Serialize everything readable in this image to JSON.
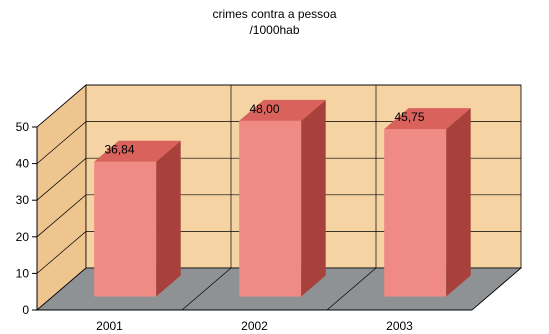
{
  "chart_data": {
    "type": "bar",
    "title": [
      "crimes contra a pessoa",
      "/1000hab"
    ],
    "categories": [
      "2001",
      "2002",
      "2003"
    ],
    "values": [
      36.84,
      48.0,
      45.75
    ],
    "data_labels": [
      "36,84",
      "48,00",
      "45,75"
    ],
    "ylim": [
      0,
      50
    ],
    "yticks": [
      "0",
      "10",
      "20",
      "30",
      "40",
      "50"
    ],
    "grid": true,
    "legend": "none",
    "style": "3d",
    "colors": {
      "bar_front": "#ef8a84",
      "bar_side": "#a8403c",
      "bar_top": "#d9625c",
      "back_wall": "#f5d3a3",
      "side_wall": "#eec48f",
      "floor": "#8e9294",
      "grid": "#000000"
    }
  }
}
